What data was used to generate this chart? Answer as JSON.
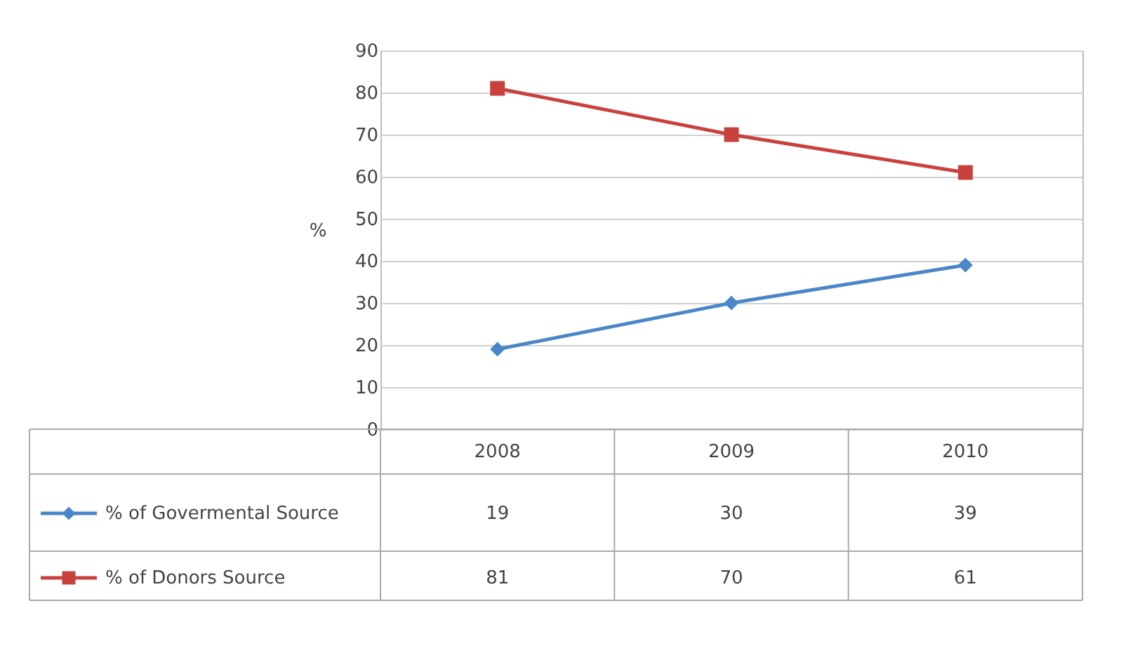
{
  "chart_data": {
    "type": "line",
    "ylabel": "%",
    "categories": [
      "2008",
      "2009",
      "2010"
    ],
    "series": [
      {
        "name": "% of Govermental Source",
        "color": "#4a86c8",
        "marker": "diamond",
        "values": [
          19,
          30,
          39
        ]
      },
      {
        "name": "% of Donors Source",
        "color": "#c8413e",
        "marker": "square",
        "values": [
          81,
          70,
          61
        ]
      }
    ],
    "ylim": [
      0,
      90
    ],
    "yticks": [
      0,
      10,
      20,
      30,
      40,
      50,
      60,
      70,
      80,
      90
    ],
    "grid": "y",
    "legend": "bottom left",
    "data_labels": true,
    "line_style": "solid"
  }
}
